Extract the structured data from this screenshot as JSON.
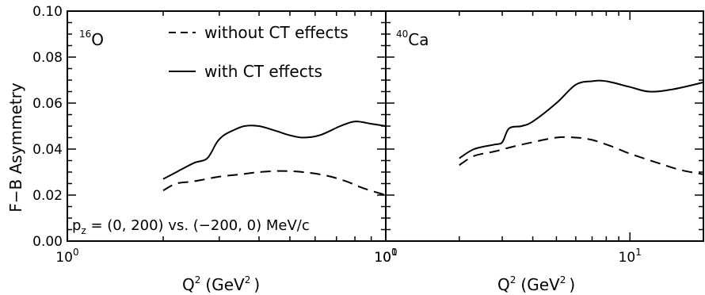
{
  "ylabel": "F−B Asymmetry",
  "xlabel": {
    "base": "Q",
    "sup": "2",
    "unit": "(GeV",
    "unit_sup": "2",
    "unit_close": ")"
  },
  "legend": {
    "dashed_label": "without CT effects",
    "solid_label": "with CT effects"
  },
  "annotation": {
    "prefix": "p",
    "sub": "z",
    "text": " = (0, 200) vs. (−200, 0) MeV/c"
  },
  "colors": {
    "ink": "#000000",
    "background": "#ffffff"
  },
  "chart_data": [
    {
      "type": "line",
      "panel": "left",
      "label": {
        "mass": "16",
        "element": "O"
      },
      "xscale": "log",
      "xlim": [
        1,
        10
      ],
      "ylim": [
        0,
        0.1
      ],
      "xticks": [
        {
          "base": "10",
          "exp": "0",
          "value": 1
        },
        {
          "base": "10",
          "exp": "1",
          "value": 10
        }
      ],
      "yticks": [
        "0.00",
        "0.02",
        "0.04",
        "0.06",
        "0.08",
        "0.10"
      ],
      "ytick_values": [
        0,
        0.02,
        0.04,
        0.06,
        0.08,
        0.1
      ],
      "series": [
        {
          "name": "without CT effects",
          "style": "dashed",
          "x": [
            2.0,
            2.2,
            2.5,
            3.0,
            3.5,
            4.0,
            4.7,
            5.5,
            6.5,
            7.5,
            8.5,
            10.0
          ],
          "y": [
            0.022,
            0.025,
            0.026,
            0.028,
            0.029,
            0.03,
            0.0305,
            0.03,
            0.0285,
            0.026,
            0.023,
            0.02
          ]
        },
        {
          "name": "with CT effects",
          "style": "solid",
          "x": [
            2.0,
            2.2,
            2.5,
            2.75,
            2.95,
            3.1,
            3.3,
            3.6,
            4.0,
            4.5,
            5.0,
            5.5,
            6.2,
            7.2,
            8.0,
            9.0,
            10.0
          ],
          "y": [
            0.027,
            0.03,
            0.034,
            0.036,
            0.043,
            0.046,
            0.048,
            0.05,
            0.05,
            0.048,
            0.046,
            0.045,
            0.046,
            0.05,
            0.052,
            0.051,
            0.05
          ]
        }
      ]
    },
    {
      "type": "line",
      "panel": "right",
      "label": {
        "mass": "40",
        "element": "Ca"
      },
      "xscale": "log",
      "xlim": [
        1,
        20
      ],
      "ylim": [
        0,
        0.1
      ],
      "xticks": [
        {
          "base": "10",
          "exp": "0",
          "value": 1
        },
        {
          "base": "10",
          "exp": "1",
          "value": 10
        }
      ],
      "series": [
        {
          "name": "without CT effects",
          "style": "dashed",
          "x": [
            2.0,
            2.3,
            2.8,
            3.3,
            4.0,
            5.0,
            6.0,
            7.0,
            8.5,
            10.0,
            13.0,
            16.0,
            20.0
          ],
          "y": [
            0.033,
            0.037,
            0.039,
            0.041,
            0.043,
            0.045,
            0.045,
            0.044,
            0.041,
            0.038,
            0.034,
            0.031,
            0.029
          ]
        },
        {
          "name": "with CT effects",
          "style": "solid",
          "x": [
            2.0,
            2.3,
            2.8,
            3.0,
            3.2,
            3.6,
            4.0,
            5.0,
            6.0,
            7.0,
            8.0,
            10.0,
            12.0,
            15.0,
            20.0
          ],
          "y": [
            0.036,
            0.04,
            0.042,
            0.043,
            0.049,
            0.05,
            0.052,
            0.06,
            0.068,
            0.0695,
            0.0695,
            0.067,
            0.065,
            0.066,
            0.069
          ]
        }
      ]
    }
  ]
}
